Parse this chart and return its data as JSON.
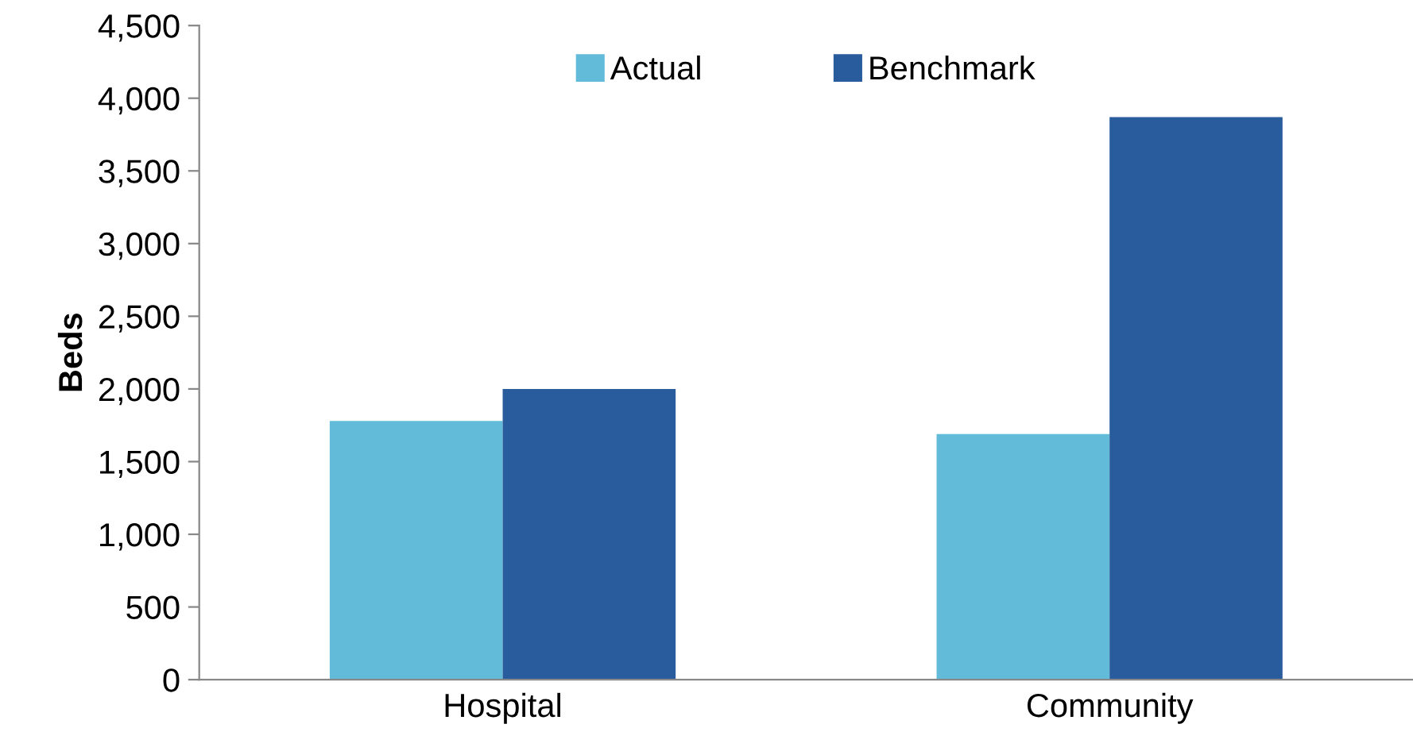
{
  "chart_data": {
    "type": "bar",
    "ylabel": "Beds",
    "categories": [
      "Hospital",
      "Community"
    ],
    "series": [
      {
        "name": "Actual",
        "color": "#63bbda",
        "values": [
          1780,
          1690
        ]
      },
      {
        "name": "Benchmark",
        "color": "#285c9c",
        "values": [
          2000,
          3870
        ]
      }
    ],
    "ylim": [
      0,
      4500
    ],
    "yticks": [
      {
        "value": 0,
        "label": "0"
      },
      {
        "value": 500,
        "label": "500"
      },
      {
        "value": 1000,
        "label": "1,000"
      },
      {
        "value": 1500,
        "label": "1,500"
      },
      {
        "value": 2000,
        "label": "2,000"
      },
      {
        "value": 2500,
        "label": "2,500"
      },
      {
        "value": 3000,
        "label": "3,000"
      },
      {
        "value": 3500,
        "label": "3,500"
      },
      {
        "value": 4000,
        "label": "4,000"
      },
      {
        "value": 4500,
        "label": "4,500"
      }
    ],
    "grid": false,
    "legend": "top"
  }
}
